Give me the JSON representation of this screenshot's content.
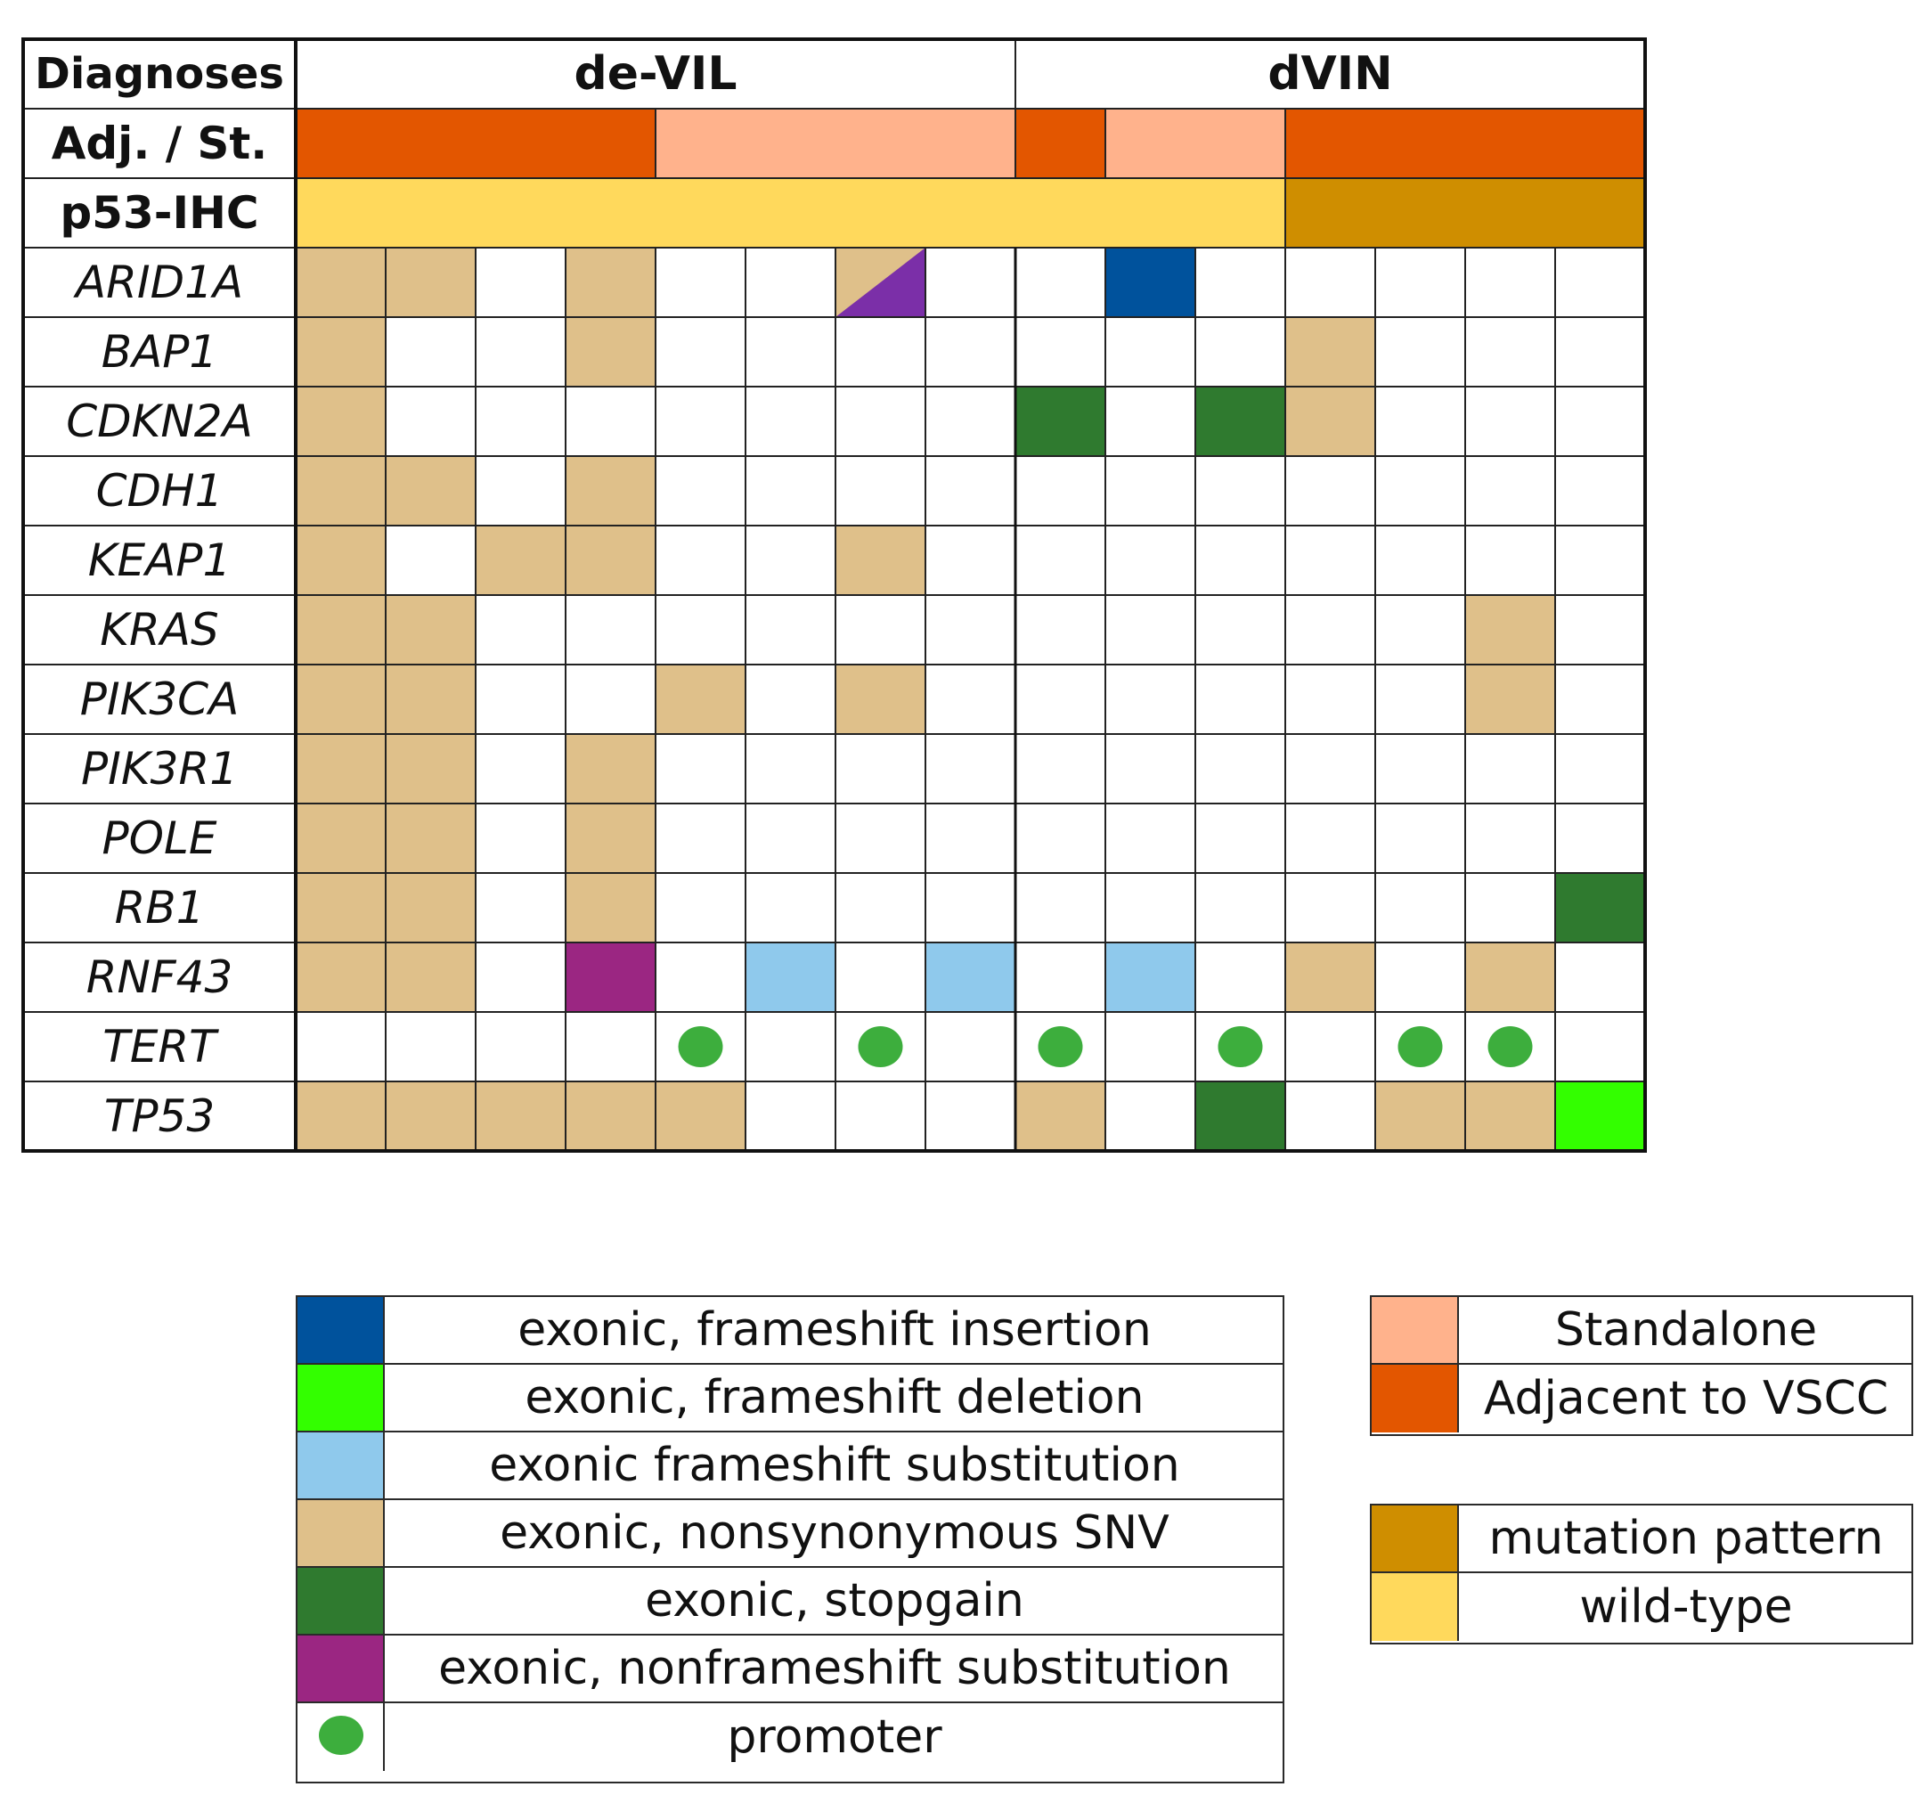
{
  "chart_data": {
    "type": "table",
    "row_header_labels": {
      "diagnoses": "Diagnoses",
      "adjacency": "Adj. / St.",
      "p53": "p53-IHC"
    },
    "groups": [
      {
        "label": "de-VIL",
        "columns": 8
      },
      {
        "label": "dVIN",
        "columns": 7
      }
    ],
    "adjacency": [
      "A",
      "A",
      "A",
      "A",
      "S",
      "S",
      "S",
      "S",
      "A",
      "S",
      "S",
      "A",
      "A",
      "A",
      "A"
    ],
    "p53_ihc": [
      "W",
      "W",
      "W",
      "W",
      "W",
      "W",
      "W",
      "W",
      "W",
      "W",
      "W",
      "M",
      "M",
      "M",
      "M"
    ],
    "genes": [
      "ARID1A",
      "BAP1",
      "CDKN2A",
      "CDH1",
      "KEAP1",
      "KRAS",
      "PIK3CA",
      "PIK3R1",
      "POLE",
      "RB1",
      "RNF43",
      "TERT",
      "TP53"
    ],
    "matrix": [
      [
        "N",
        "N",
        "",
        "N",
        "",
        "",
        "N/NF",
        "",
        "",
        "FI",
        "",
        "",
        "",
        "",
        ""
      ],
      [
        "N",
        "",
        "",
        "N",
        "",
        "",
        "",
        "",
        "",
        "",
        "",
        "N",
        "",
        "",
        ""
      ],
      [
        "N",
        "",
        "",
        "",
        "",
        "",
        "",
        "",
        "SG",
        "",
        "SG",
        "N",
        "",
        "",
        ""
      ],
      [
        "N",
        "N",
        "",
        "N",
        "",
        "",
        "",
        "",
        "",
        "",
        "",
        "",
        "",
        "",
        ""
      ],
      [
        "N",
        "",
        "N",
        "N",
        "",
        "",
        "N",
        "",
        "",
        "",
        "",
        "",
        "",
        "",
        ""
      ],
      [
        "N",
        "N",
        "",
        "",
        "",
        "",
        "",
        "",
        "",
        "",
        "",
        "",
        "",
        "N",
        ""
      ],
      [
        "N",
        "N",
        "",
        "",
        "N",
        "",
        "N",
        "",
        "",
        "",
        "",
        "",
        "",
        "N",
        ""
      ],
      [
        "N",
        "N",
        "",
        "N",
        "",
        "",
        "",
        "",
        "",
        "",
        "",
        "",
        "",
        "",
        ""
      ],
      [
        "N",
        "N",
        "",
        "N",
        "",
        "",
        "",
        "",
        "",
        "",
        "",
        "",
        "",
        "",
        ""
      ],
      [
        "N",
        "N",
        "",
        "N",
        "",
        "",
        "",
        "",
        "",
        "",
        "",
        "",
        "",
        "",
        "SG"
      ],
      [
        "N",
        "N",
        "",
        "NF",
        "",
        "FS",
        "",
        "FS",
        "",
        "FS",
        "",
        "N",
        "",
        "N",
        ""
      ],
      [
        "",
        "",
        "",
        "",
        "P",
        "",
        "P",
        "",
        "P",
        "",
        "P",
        "",
        "P",
        "P",
        ""
      ],
      [
        "N",
        "N",
        "N",
        "N",
        "N",
        "",
        "",
        "",
        "N",
        "",
        "SG",
        "",
        "N",
        "N",
        "FD"
      ]
    ],
    "mutation_legend": [
      {
        "code": "FI",
        "label": "exonic, frameshift insertion",
        "color": "#00529c"
      },
      {
        "code": "FD",
        "label": "exonic, frameshift deletion",
        "color": "#33ff00"
      },
      {
        "code": "FS",
        "label": "exonic frameshift substitution",
        "color": "#8fc9ec"
      },
      {
        "code": "N",
        "label": "exonic, nonsynonymous SNV",
        "color": "#dfc08a"
      },
      {
        "code": "SG",
        "label": "exonic, stopgain",
        "color": "#2f7a2f"
      },
      {
        "code": "NF",
        "label": "exonic, nonframeshift substitution",
        "color": "#9b2682"
      },
      {
        "code": "P",
        "label": "promoter",
        "color": "#3dae3d"
      }
    ],
    "adjacency_legend": [
      {
        "code": "S",
        "label": "Standalone",
        "color": "#ffb28c"
      },
      {
        "code": "A",
        "label": "Adjacent to VSCC",
        "color": "#e35600"
      }
    ],
    "p53_legend": [
      {
        "code": "M",
        "label": "mutation pattern",
        "color": "#cf8e00"
      },
      {
        "code": "W",
        "label": "wild-type",
        "color": "#ffd95c"
      }
    ],
    "extra_colors": {
      "NF_triangle_in_N_cell": "#7b2fa8"
    }
  }
}
